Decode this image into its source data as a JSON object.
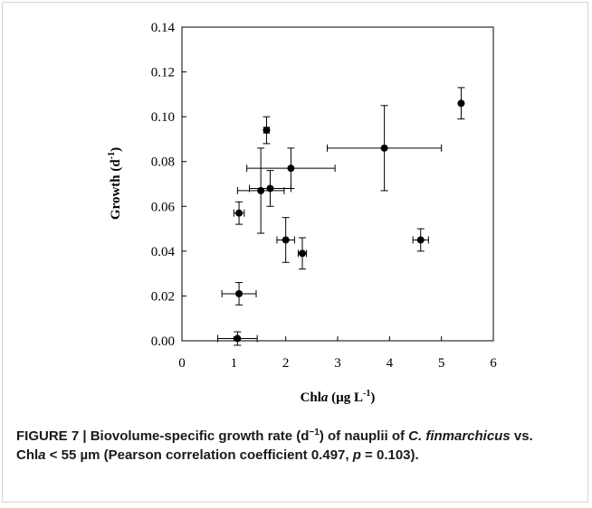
{
  "chart_data": {
    "type": "scatter",
    "title": "",
    "xlabel": {
      "prefix": "Chl",
      "italic": "a",
      "suffix": " (µg L",
      "sup": "-1",
      "close": ")"
    },
    "ylabel": {
      "prefix": "Growth (d",
      "sup": "-1",
      "close": ")"
    },
    "xlim": [
      0,
      6
    ],
    "ylim": [
      0,
      0.14
    ],
    "x_ticks": [
      "0",
      "1",
      "2",
      "3",
      "4",
      "5",
      "6"
    ],
    "y_ticks": [
      "0.00",
      "0.02",
      "0.04",
      "0.06",
      "0.08",
      "0.10",
      "0.12",
      "0.14"
    ],
    "grid": false,
    "legend": "none",
    "marker_color": "#000000",
    "points": [
      {
        "x": 1.07,
        "y": 0.001,
        "xerr": 0.38,
        "yerr": 0.003
      },
      {
        "x": 1.1,
        "y": 0.021,
        "xerr": 0.33,
        "yerr": 0.005
      },
      {
        "x": 1.1,
        "y": 0.057,
        "xerr": 0.1,
        "yerr": 0.005
      },
      {
        "x": 1.52,
        "y": 0.067,
        "xerr": 0.45,
        "yerr": 0.019
      },
      {
        "x": 1.63,
        "y": 0.094,
        "xerr": 0.05,
        "yerr": 0.006
      },
      {
        "x": 1.7,
        "y": 0.068,
        "xerr": 0.4,
        "yerr": 0.008
      },
      {
        "x": 2.0,
        "y": 0.045,
        "xerr": 0.17,
        "yerr": 0.01
      },
      {
        "x": 2.1,
        "y": 0.077,
        "xerr": 0.85,
        "yerr": 0.009
      },
      {
        "x": 2.32,
        "y": 0.039,
        "xerr": 0.08,
        "yerr": 0.007
      },
      {
        "x": 3.9,
        "y": 0.086,
        "xerr": 1.1,
        "yerr": 0.019
      },
      {
        "x": 4.6,
        "y": 0.045,
        "xerr": 0.15,
        "yerr": 0.005
      },
      {
        "x": 5.38,
        "y": 0.106,
        "xerr": 0.0,
        "yerr": 0.007
      }
    ]
  },
  "caption": {
    "figure_label": "FIGURE 7 | ",
    "text_1": "Biovolume-specific growth rate (d",
    "text_1_sup": "−1",
    "text_2": ") of nauplii of ",
    "species": "C. finmarchicus",
    "text_3": " vs. Chl",
    "chl_italic": "a",
    "text_4": " < 55 µm (Pearson correlation coefficient 0.497, ",
    "p_italic": "p",
    "text_5": " = 0.103)."
  }
}
